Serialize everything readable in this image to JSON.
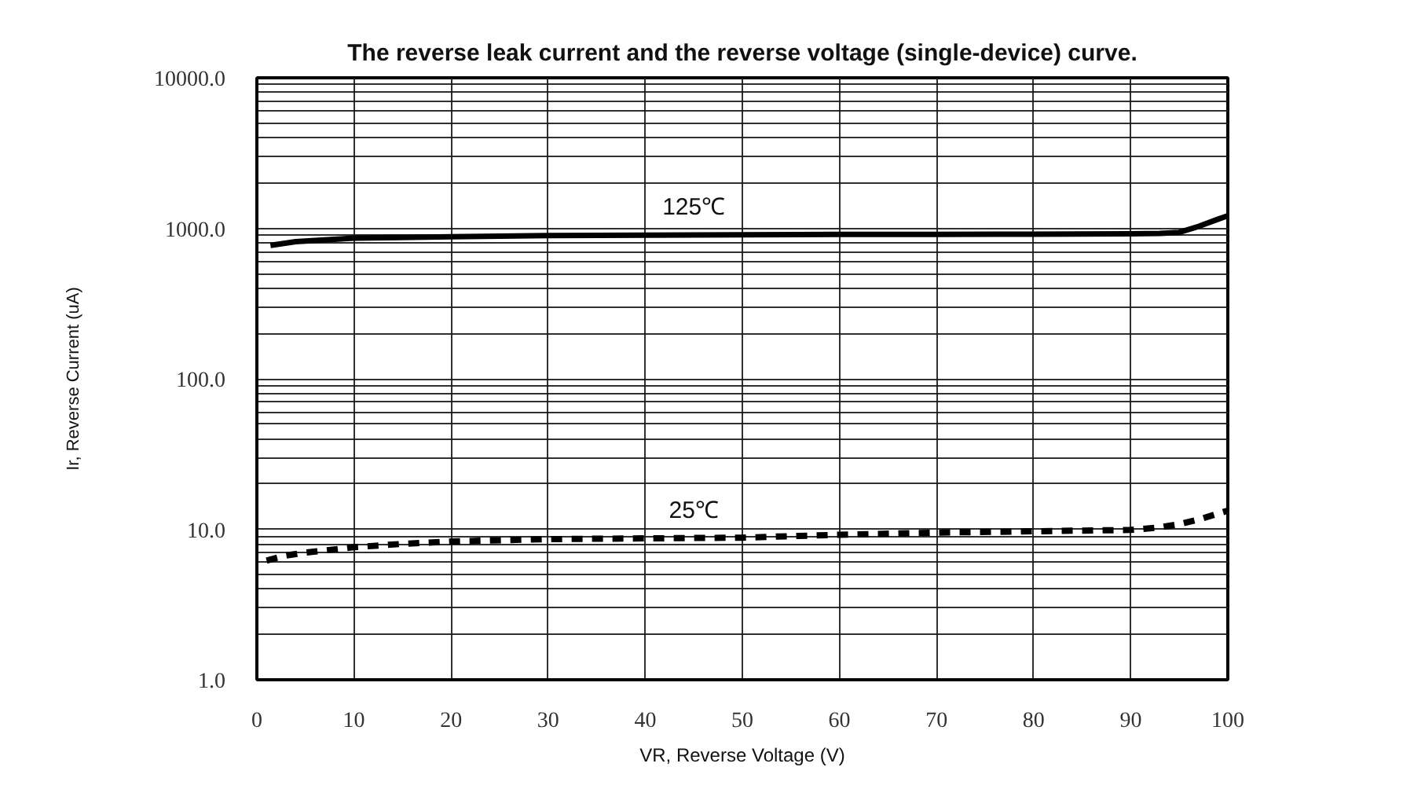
{
  "chart_data": {
    "type": "line",
    "title": "The reverse leak current and the reverse voltage (single-device) curve.",
    "xlabel": "VR, Reverse Voltage (V)",
    "ylabel": "Ir, Reverse Current (uA)",
    "log": "y",
    "grid": true,
    "xlim": [
      0,
      100
    ],
    "xticks": [
      0,
      10,
      20,
      30,
      40,
      50,
      60,
      70,
      80,
      90,
      100
    ],
    "ylim": [
      1,
      10000
    ],
    "yticks": [
      {
        "value": 1,
        "label": "1.0"
      },
      {
        "value": 2,
        "label": null
      },
      {
        "value": 3,
        "label": null
      },
      {
        "value": 4,
        "label": null
      },
      {
        "value": 5,
        "label": null
      },
      {
        "value": 6,
        "label": null
      },
      {
        "value": 7,
        "label": null
      },
      {
        "value": 8,
        "label": null
      },
      {
        "value": 9,
        "label": null
      },
      {
        "value": 10,
        "label": "10.0"
      },
      {
        "value": 20,
        "label": null
      },
      {
        "value": 30,
        "label": null
      },
      {
        "value": 40,
        "label": null
      },
      {
        "value": 50,
        "label": null
      },
      {
        "value": 60,
        "label": null
      },
      {
        "value": 70,
        "label": null
      },
      {
        "value": 80,
        "label": null
      },
      {
        "value": 90,
        "label": null
      },
      {
        "value": 100,
        "label": "100.0"
      },
      {
        "value": 200,
        "label": null
      },
      {
        "value": 300,
        "label": null
      },
      {
        "value": 400,
        "label": null
      },
      {
        "value": 500,
        "label": null
      },
      {
        "value": 600,
        "label": null
      },
      {
        "value": 700,
        "label": null
      },
      {
        "value": 800,
        "label": null
      },
      {
        "value": 900,
        "label": null
      },
      {
        "value": 1000,
        "label": "1000.0"
      },
      {
        "value": 2000,
        "label": null
      },
      {
        "value": 3000,
        "label": null
      },
      {
        "value": 4000,
        "label": null
      },
      {
        "value": 5000,
        "label": null
      },
      {
        "value": 6000,
        "label": null
      },
      {
        "value": 7000,
        "label": null
      },
      {
        "value": 8000,
        "label": null
      },
      {
        "value": 9000,
        "label": null
      },
      {
        "value": 10000,
        "label": "10000.0"
      }
    ],
    "series": [
      {
        "name": "125℃",
        "color": "#000000",
        "line_style": "solid",
        "x": [
          1.4,
          4,
          10,
          20,
          30,
          40,
          50,
          60,
          70,
          80,
          90,
          93,
          95,
          97,
          99,
          100
        ],
        "values": [
          770,
          815,
          860,
          880,
          895,
          900,
          905,
          910,
          910,
          915,
          920,
          925,
          940,
          1030,
          1150,
          1210
        ]
      },
      {
        "name": "25℃",
        "color": "#000000",
        "line_style": "dashed",
        "x": [
          1,
          3,
          5,
          10,
          15,
          20,
          30,
          40,
          50,
          60,
          70,
          80,
          90,
          93,
          95,
          97,
          100
        ],
        "values": [
          6.2,
          6.7,
          7.0,
          7.6,
          8.0,
          8.3,
          8.6,
          8.7,
          8.8,
          9.2,
          9.5,
          9.7,
          9.9,
          10.3,
          10.8,
          11.6,
          13.3
        ]
      }
    ]
  }
}
